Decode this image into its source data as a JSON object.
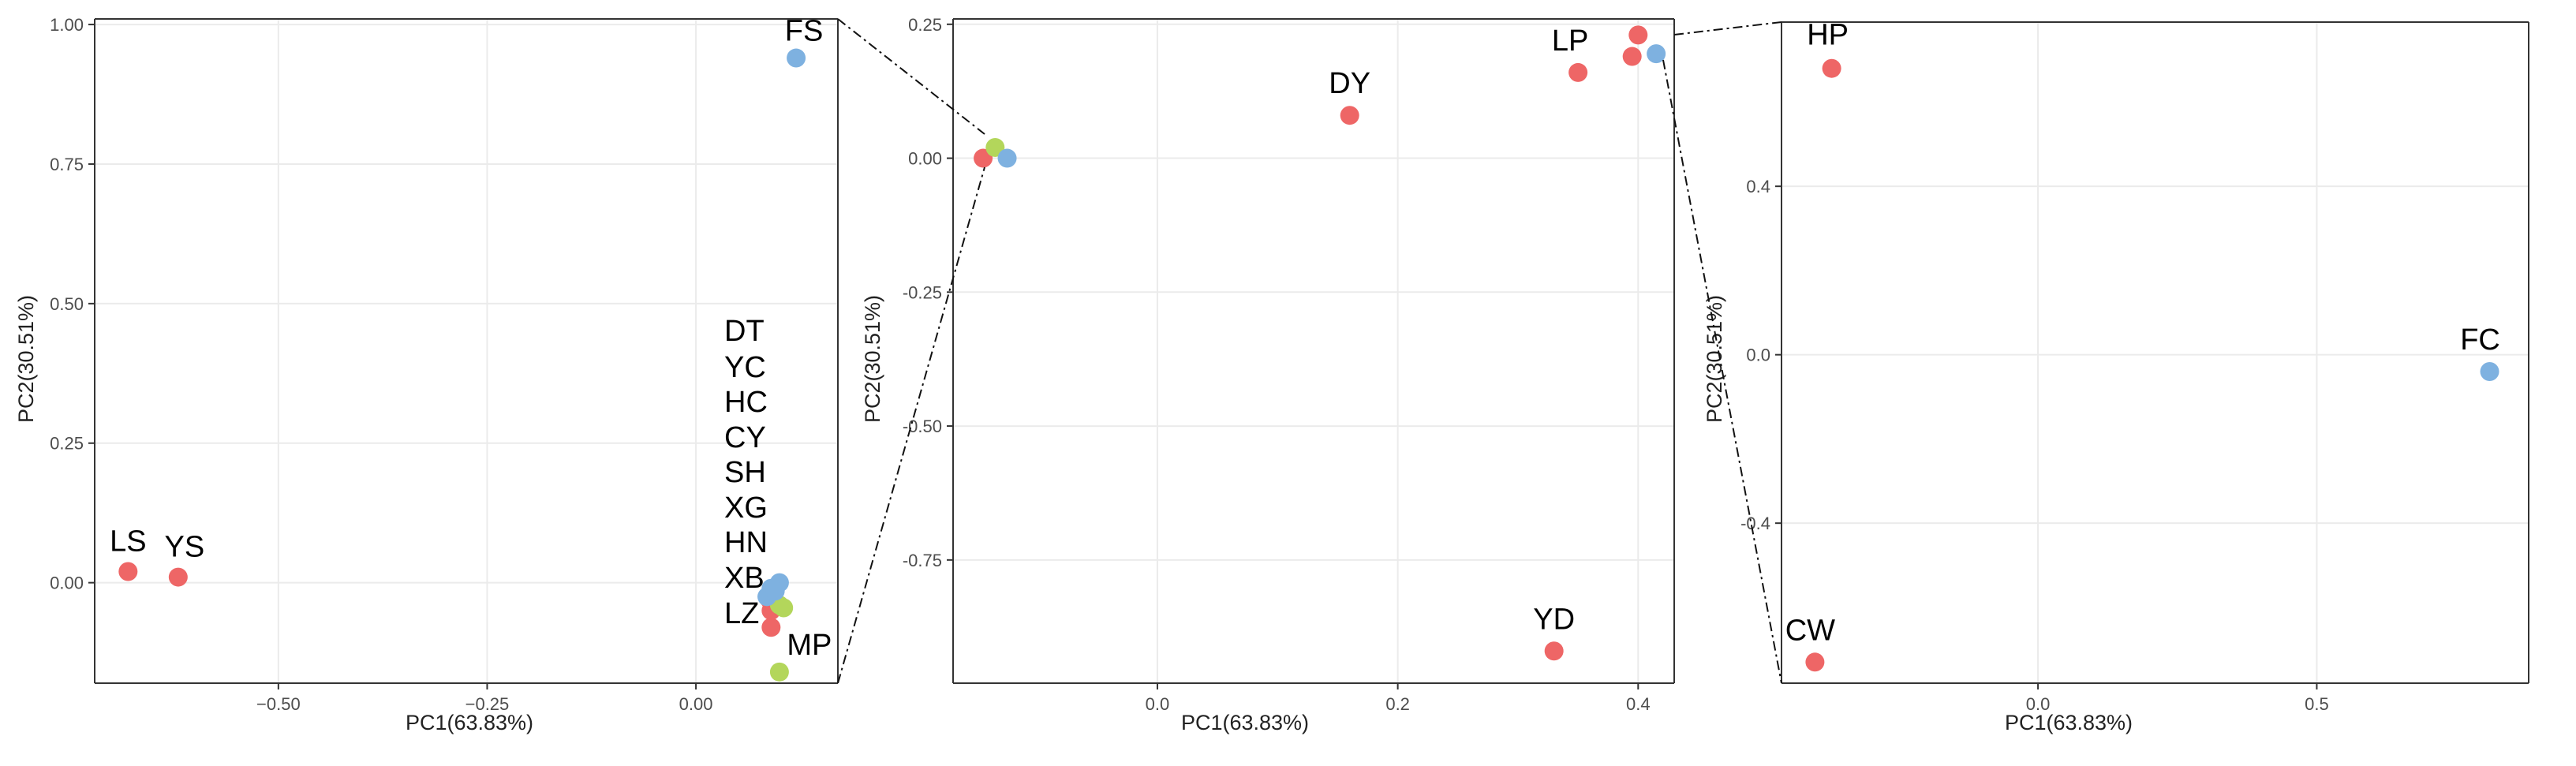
{
  "colors": {
    "red": "#ee6666",
    "blue": "#7eb1e0",
    "green": "#b3d65b"
  },
  "chart_data": [
    {
      "type": "scatter",
      "title": "",
      "xlabel": "PC1(63.83%)",
      "ylabel": "PC2(30.51%)",
      "xlim": [
        -0.72,
        0.17
      ],
      "ylim": [
        -0.18,
        1.01
      ],
      "x_ticks": [
        {
          "value": -0.5,
          "label": "−0.50"
        },
        {
          "value": -0.25,
          "label": "−0.25"
        },
        {
          "value": 0.0,
          "label": "0.00"
        }
      ],
      "y_ticks": [
        {
          "value": 0.0,
          "label": "0.00"
        },
        {
          "value": 0.25,
          "label": "0.25"
        },
        {
          "value": 0.5,
          "label": "0.50"
        },
        {
          "value": 0.75,
          "label": "0.75"
        },
        {
          "value": 1.0,
          "label": "1.00"
        }
      ],
      "points": [
        {
          "label": "LS",
          "x": -0.68,
          "y": 0.02,
          "color": "red"
        },
        {
          "label": "YS",
          "x": -0.62,
          "y": 0.01,
          "color": "red"
        },
        {
          "label": "FS",
          "x": 0.12,
          "y": 0.94,
          "color": "blue"
        },
        {
          "label": "MP",
          "x": 0.1,
          "y": -0.16,
          "color": "green"
        },
        {
          "label": "",
          "x": 0.09,
          "y": -0.08,
          "color": "red"
        },
        {
          "label": "",
          "x": 0.09,
          "y": -0.05,
          "color": "red"
        },
        {
          "label": "",
          "x": 0.088,
          "y": -0.03,
          "color": "red"
        },
        {
          "label": "",
          "x": 0.1,
          "y": -0.04,
          "color": "green"
        },
        {
          "label": "",
          "x": 0.105,
          "y": -0.045,
          "color": "green"
        },
        {
          "label": "",
          "x": 0.085,
          "y": -0.025,
          "color": "blue"
        },
        {
          "label": "",
          "x": 0.09,
          "y": -0.01,
          "color": "blue"
        },
        {
          "label": "",
          "x": 0.1,
          "y": 0.0,
          "color": "blue"
        },
        {
          "label": "",
          "x": 0.095,
          "y": -0.015,
          "color": "blue"
        }
      ],
      "cluster_labels": [
        "DT",
        "YC",
        "HC",
        "CY",
        "SH",
        "XG",
        "HN",
        "XB",
        "LZ"
      ]
    },
    {
      "type": "scatter",
      "title": "",
      "xlabel": "PC1(63.83%)",
      "ylabel": "PC2(30.51%)",
      "xlim": [
        -0.17,
        0.43
      ],
      "ylim": [
        -0.98,
        0.26
      ],
      "x_ticks": [
        {
          "value": 0.0,
          "label": "0.0"
        },
        {
          "value": 0.2,
          "label": "0.2"
        },
        {
          "value": 0.4,
          "label": "0.4"
        }
      ],
      "y_ticks": [
        {
          "value": 0.25,
          "label": "0.25"
        },
        {
          "value": 0.0,
          "label": "0.00"
        },
        {
          "value": -0.25,
          "label": "-0.25"
        },
        {
          "value": -0.5,
          "label": "-0.50"
        },
        {
          "value": -0.75,
          "label": "-0.75"
        }
      ],
      "points": [
        {
          "label": "DY",
          "x": 0.16,
          "y": 0.08,
          "color": "red"
        },
        {
          "label": "LP",
          "x": 0.35,
          "y": 0.16,
          "color": "red"
        },
        {
          "label": "YD",
          "x": 0.33,
          "y": -0.92,
          "color": "red"
        },
        {
          "label": "",
          "x": 0.4,
          "y": 0.23,
          "color": "red"
        },
        {
          "label": "",
          "x": 0.395,
          "y": 0.19,
          "color": "red"
        },
        {
          "label": "",
          "x": 0.415,
          "y": 0.195,
          "color": "blue"
        },
        {
          "label": "",
          "x": -0.145,
          "y": 0.0,
          "color": "red"
        },
        {
          "label": "",
          "x": -0.135,
          "y": 0.02,
          "color": "green"
        },
        {
          "label": "",
          "x": -0.125,
          "y": 0.0,
          "color": "blue"
        }
      ]
    },
    {
      "type": "scatter",
      "title": "",
      "xlabel": "PC1(63.83%)",
      "ylabel": "PC2(30.51%)",
      "xlim": [
        -0.46,
        0.88
      ],
      "ylim": [
        -0.78,
        0.79
      ],
      "x_ticks": [
        {
          "value": 0.0,
          "label": "0.0"
        },
        {
          "value": 0.5,
          "label": "0.5"
        }
      ],
      "y_ticks": [
        {
          "value": 0.4,
          "label": "0.4"
        },
        {
          "value": 0.0,
          "label": "0.0"
        },
        {
          "value": -0.4,
          "label": "-0.4"
        }
      ],
      "points": [
        {
          "label": "HP",
          "x": -0.37,
          "y": 0.68,
          "color": "red"
        },
        {
          "label": "FC",
          "x": 0.81,
          "y": -0.04,
          "color": "blue"
        },
        {
          "label": "CW",
          "x": -0.4,
          "y": -0.73,
          "color": "red"
        }
      ]
    }
  ]
}
